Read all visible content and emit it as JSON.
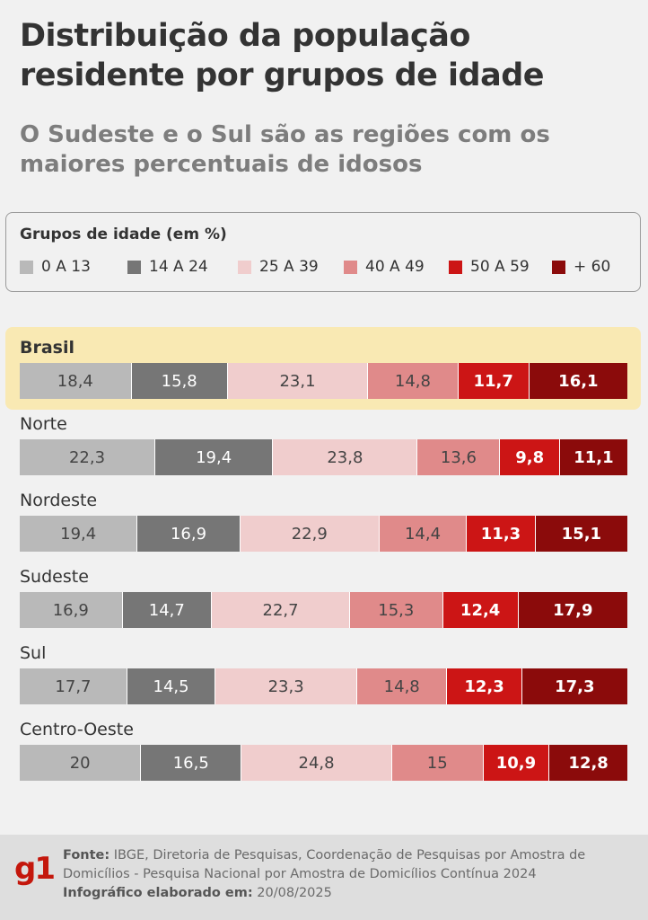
{
  "title": "Distribuição da população residente por grupos de idade",
  "subtitle": "O Sudeste e o Sul são as regiões com os maiores percentuais de idosos",
  "legend": {
    "title": "Grupos de idade (em %)"
  },
  "colors": {
    "0 A 13": "#b9b9b9",
    "14 A 24": "#767676",
    "25 A 39": "#f0cdcd",
    "40 A 49": "#e08a8a",
    "50 A 59": "#cc1515",
    "+ 60": "#8b0b0b",
    "highlight": "#f9e9b3"
  },
  "chart_data": {
    "type": "bar",
    "orientation": "horizontal",
    "stacked": true,
    "unit": "%",
    "categories": [
      "Brasil",
      "Norte",
      "Nordeste",
      "Sudeste",
      "Sul",
      "Centro-Oeste"
    ],
    "value_labels": [
      [
        "18,4",
        "15,8",
        "23,1",
        "14,8",
        "11,7",
        "16,1"
      ],
      [
        "22,3",
        "19,4",
        "23,8",
        "13,6",
        "9,8",
        "11,1"
      ],
      [
        "19,4",
        "16,9",
        "22,9",
        "14,4",
        "11,3",
        "15,1"
      ],
      [
        "16,9",
        "14,7",
        "22,7",
        "15,3",
        "12,4",
        "17,9"
      ],
      [
        "17,7",
        "14,5",
        "23,3",
        "14,8",
        "12,3",
        "17,3"
      ],
      [
        "20",
        "16,5",
        "24,8",
        "15",
        "10,9",
        "12,8"
      ]
    ],
    "series": [
      {
        "name": "0 A 13",
        "values": [
          18.4,
          22.3,
          19.4,
          16.9,
          17.7,
          20.0
        ]
      },
      {
        "name": "14 A 24",
        "values": [
          15.8,
          19.4,
          16.9,
          14.7,
          14.5,
          16.5
        ]
      },
      {
        "name": "25 A 39",
        "values": [
          23.1,
          23.8,
          22.9,
          22.7,
          23.3,
          24.8
        ]
      },
      {
        "name": "40 A 49",
        "values": [
          14.8,
          13.6,
          14.4,
          15.3,
          14.8,
          15.0
        ]
      },
      {
        "name": "50 A 59",
        "values": [
          11.7,
          9.8,
          11.3,
          12.4,
          12.3,
          10.9
        ]
      },
      {
        "name": "+ 60",
        "values": [
          16.1,
          11.1,
          15.1,
          17.9,
          17.3,
          12.8
        ]
      }
    ],
    "highlighted_category": "Brasil"
  },
  "footer": {
    "logo": "g1",
    "source_label": "Fonte:",
    "source_text": "IBGE, Diretoria de Pesquisas, Coordenação de Pesquisas por Amostra de Domicílios - Pesquisa Nacional por Amostra de Domicílios Contínua 2024",
    "date_label": "Infográfico elaborado em:",
    "date_value": "20/08/2025"
  }
}
